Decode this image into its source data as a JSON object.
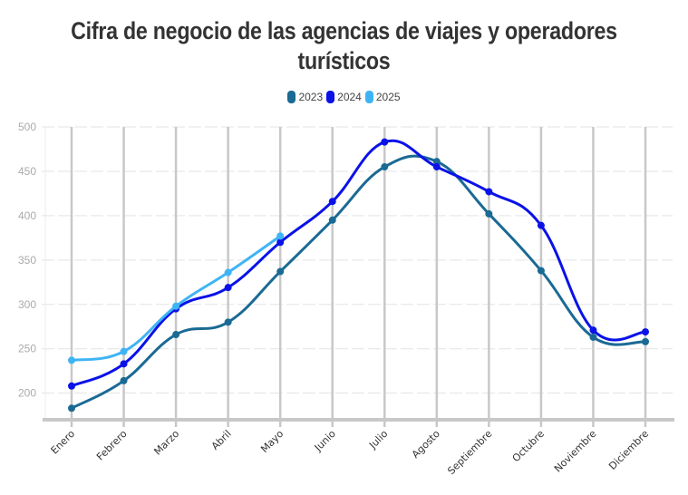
{
  "chart_data": {
    "type": "line",
    "title": "Cifra de negocio de las agencias de viajes y operadores turísticos",
    "title_lines": [
      "Cifra de negocio de las agencias de viajes y operadores",
      "turísticos"
    ],
    "xlabel": "",
    "ylabel": "",
    "categories": [
      "Enero",
      "Febrero",
      "Marzo",
      "Abril",
      "Mayo",
      "Junio",
      "Julio",
      "Agosto",
      "Septiembre",
      "Octubre",
      "Noviembre",
      "Diciembre"
    ],
    "ylim": [
      170,
      500
    ],
    "yticks": [
      200,
      250,
      300,
      350,
      400,
      450,
      500
    ],
    "grid": true,
    "legend_position": "top-center",
    "curve": "smooth",
    "series": [
      {
        "name": "2023",
        "color": "#1a6a94",
        "values": [
          183,
          214,
          266,
          280,
          337,
          395,
          455,
          461,
          402,
          338,
          263,
          258
        ]
      },
      {
        "name": "2024",
        "color": "#0a12e8",
        "values": [
          208,
          233,
          295,
          319,
          370,
          416,
          483,
          455,
          427,
          389,
          271,
          269
        ]
      },
      {
        "name": "2025",
        "color": "#3fb4f5",
        "values": [
          237,
          247,
          298,
          336,
          377
        ]
      }
    ]
  }
}
